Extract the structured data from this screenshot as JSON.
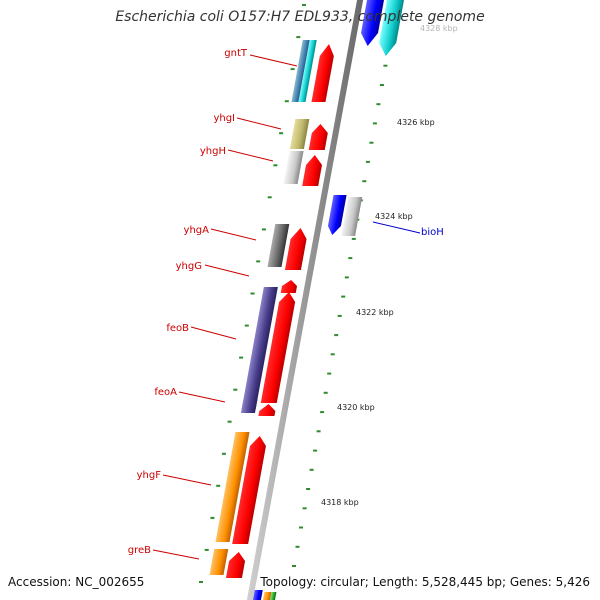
{
  "title": "Escherichia coli O157:H7 EDL933, complete genome",
  "accession": "Accession: NC_002655",
  "summary": "Topology: circular; Length: 5,528,445 bp; Genes: 5,426",
  "colors": {
    "reverse_label": "#cc0000",
    "forward_label": "#0000cc",
    "backbone": "#999999",
    "tick": "#2e8b2e",
    "cds_red": "#ff0000"
  },
  "ruler": [
    {
      "label": "4328 kbp"
    },
    {
      "label": "4326 kbp"
    },
    {
      "label": "4324 kbp"
    },
    {
      "label": "4322 kbp"
    },
    {
      "label": "4320 kbp"
    },
    {
      "label": "4318 kbp"
    }
  ],
  "gene_labels": [
    {
      "name": "gntT",
      "strand": "reverse"
    },
    {
      "name": "yhgI",
      "strand": "reverse"
    },
    {
      "name": "yhgH",
      "strand": "reverse"
    },
    {
      "name": "yhgA",
      "strand": "reverse"
    },
    {
      "name": "yhgG",
      "strand": "reverse"
    },
    {
      "name": "feoB",
      "strand": "reverse"
    },
    {
      "name": "feoA",
      "strand": "reverse"
    },
    {
      "name": "yhgF",
      "strand": "reverse"
    },
    {
      "name": "greB",
      "strand": "reverse"
    },
    {
      "name": "bioH",
      "strand": "forward"
    }
  ]
}
